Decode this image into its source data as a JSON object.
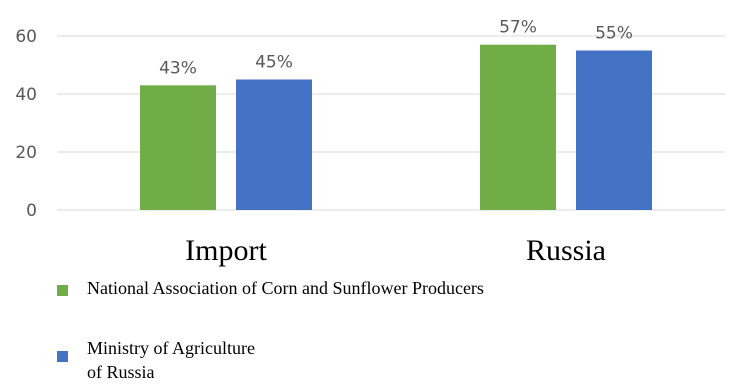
{
  "chart_data": {
    "type": "bar",
    "categories": [
      "Import",
      "Russia"
    ],
    "series": [
      {
        "name": "National Association of Corn and Sunflower Producers",
        "values": [
          43,
          57
        ],
        "color": "#70ad47"
      },
      {
        "name": "Ministry of Agriculture\nof Russia",
        "values": [
          45,
          55
        ],
        "color": "#4472c4"
      }
    ],
    "data_labels": [
      [
        "43%",
        "57%"
      ],
      [
        "45%",
        "55%"
      ]
    ],
    "yticks": [
      "0",
      "20",
      "40",
      "60"
    ],
    "ylim": [
      0,
      60
    ],
    "grid": true,
    "legend_position": "bottom"
  }
}
